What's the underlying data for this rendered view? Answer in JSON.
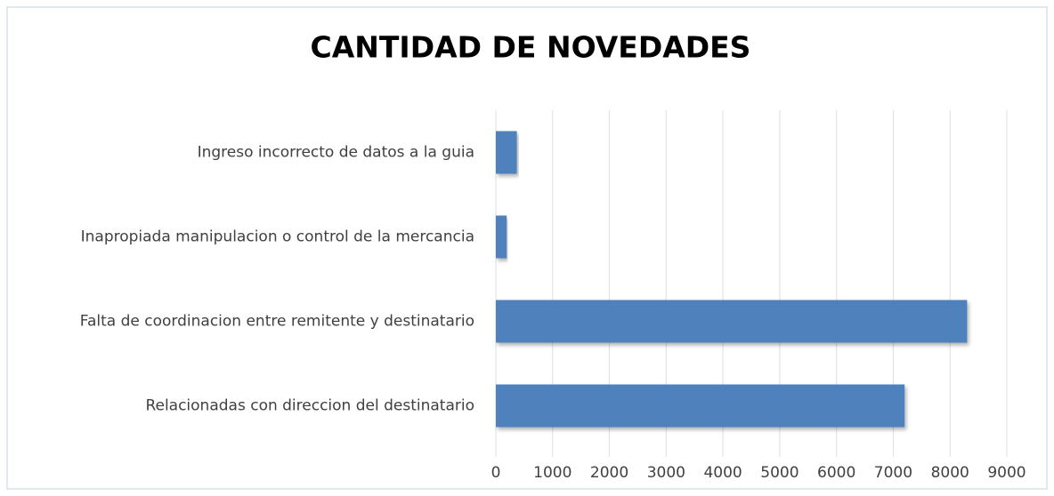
{
  "chart_data": {
    "type": "barh",
    "title": "CANTIDAD DE NOVEDADES",
    "categories": [
      "Ingreso incorrecto de datos a la guia",
      "Inapropiada manipulacion o control de la mercancia",
      "Falta de coordinacion entre remitente y destinatario",
      "Relacionadas con direccion del destinatario"
    ],
    "values": [
      370,
      190,
      8300,
      7200
    ],
    "color": "#4f81bd",
    "xlim": [
      0,
      9000
    ],
    "xticks": [
      0,
      1000,
      2000,
      3000,
      4000,
      5000,
      6000,
      7000,
      8000,
      9000
    ],
    "grid": true
  }
}
